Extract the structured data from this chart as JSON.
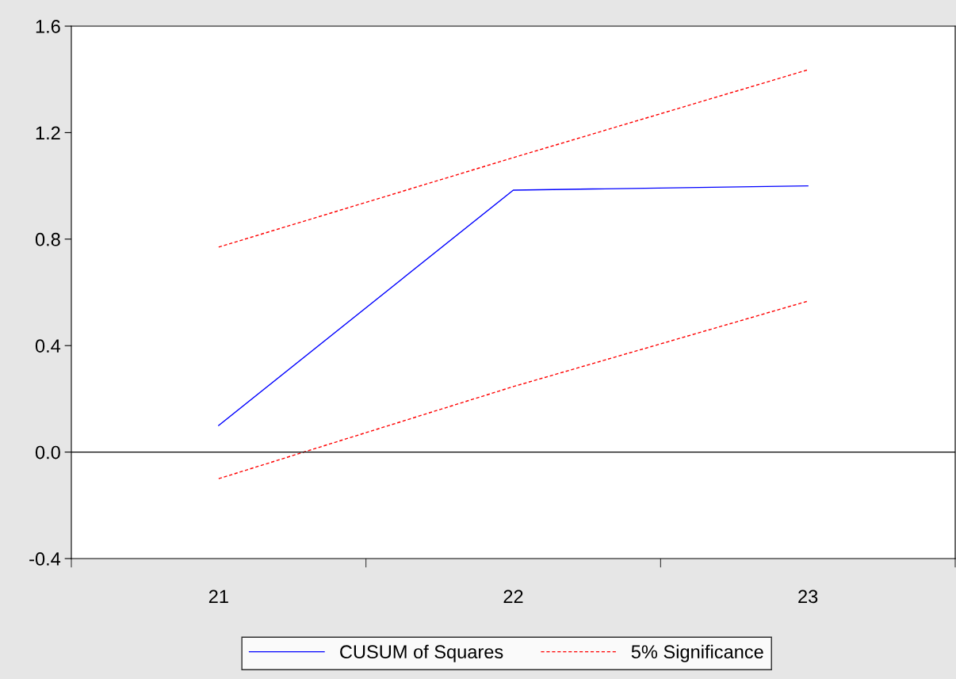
{
  "chart_data": {
    "type": "line",
    "categories": [
      "21",
      "22",
      "23"
    ],
    "series": [
      {
        "name": "CUSUM of Squares",
        "color": "#0000ff",
        "values": [
          0.1,
          0.984,
          1.0
        ],
        "line_style": "solid"
      },
      {
        "name": "5% Significance",
        "color": "#ff0000",
        "values": [
          0.77,
          1.106,
          1.436
        ],
        "line_style": "dashed"
      },
      {
        "name": null,
        "color": "#ff0000",
        "values": [
          -0.1,
          0.246,
          0.567
        ],
        "line_style": "dashed"
      }
    ],
    "ylim": [
      -0.4,
      1.6
    ],
    "yticks": [
      {
        "value": -0.4,
        "label": "-0.4"
      },
      {
        "value": 0.0,
        "label": "0.0"
      },
      {
        "value": 0.4,
        "label": "0.4"
      },
      {
        "value": 0.8,
        "label": "0.8"
      },
      {
        "value": 1.2,
        "label": "1.2"
      },
      {
        "value": 1.6,
        "label": "1.6"
      }
    ],
    "ref_lines": [
      {
        "axis": "y",
        "value": 0,
        "label": null,
        "color": "#000000",
        "line_style": "solid"
      }
    ],
    "grid": false,
    "legend": "bottom",
    "marker": "none"
  }
}
